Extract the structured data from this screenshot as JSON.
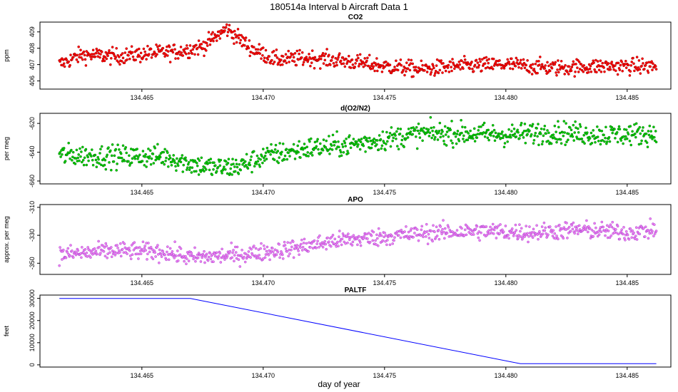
{
  "figure": {
    "title": "180514a   Interval b Aircraft Data 1",
    "xlabel": "day of year"
  },
  "chart_data": [
    {
      "type": "scatter",
      "title": "CO2",
      "ylabel": "ppm",
      "color": "#ff0000",
      "marker_outline": "#8b0000",
      "xlim": [
        134.4608,
        134.4868
      ],
      "ylim": [
        405.5,
        409.6
      ],
      "xticks": [
        "134.465",
        "134.470",
        "134.475",
        "134.480",
        "134.485"
      ],
      "yticks": [
        "406",
        "407",
        "408",
        "409"
      ],
      "x_range": [
        134.4616,
        134.4862
      ],
      "trend": [
        [
          134.4616,
          407.0
        ],
        [
          134.4625,
          407.6
        ],
        [
          134.464,
          407.5
        ],
        [
          134.4655,
          407.7
        ],
        [
          134.4665,
          407.8
        ],
        [
          134.4675,
          408.1
        ],
        [
          134.4685,
          409.2
        ],
        [
          134.4695,
          408.0
        ],
        [
          134.4705,
          407.3
        ],
        [
          134.472,
          407.4
        ],
        [
          134.4735,
          407.2
        ],
        [
          134.475,
          406.9
        ],
        [
          134.4765,
          406.7
        ],
        [
          134.478,
          406.9
        ],
        [
          134.48,
          407.0
        ],
        [
          134.482,
          406.8
        ],
        [
          134.484,
          406.9
        ],
        [
          134.4862,
          406.9
        ]
      ],
      "noise": 0.35
    },
    {
      "type": "scatter",
      "title": "d(O2/N2)",
      "ylabel": "per meg",
      "color": "#00cc00",
      "marker_outline": "#006400",
      "xlim": [
        134.4608,
        134.4868
      ],
      "ylim": [
        -662,
        -613
      ],
      "xticks": [
        "134.465",
        "134.470",
        "134.475",
        "134.480",
        "134.485"
      ],
      "yticks": [
        "-660",
        "-640",
        "-620"
      ],
      "x_range": [
        134.4616,
        134.4862
      ],
      "trend": [
        [
          134.4616,
          -642
        ],
        [
          134.464,
          -643
        ],
        [
          134.466,
          -643
        ],
        [
          134.467,
          -648
        ],
        [
          134.468,
          -651
        ],
        [
          134.469,
          -650
        ],
        [
          134.47,
          -643
        ],
        [
          134.472,
          -637
        ],
        [
          134.4735,
          -635
        ],
        [
          134.475,
          -631
        ],
        [
          134.4765,
          -627
        ],
        [
          134.478,
          -627
        ],
        [
          134.48,
          -628
        ],
        [
          134.482,
          -626
        ],
        [
          134.484,
          -628
        ],
        [
          134.4862,
          -627
        ]
      ],
      "noise": 5.5
    },
    {
      "type": "scatter",
      "title": "APO",
      "ylabel": "approx. per meg",
      "color": "#ee82ee",
      "marker_outline": "#9932cc",
      "xlim": [
        134.4608,
        134.4868
      ],
      "ylim": [
        -358,
        -308
      ],
      "xticks": [
        "134.465",
        "134.470",
        "134.475",
        "134.480",
        "134.485"
      ],
      "yticks": [
        "-350",
        "-330",
        "-310"
      ],
      "x_range": [
        134.4616,
        134.4862
      ],
      "trend": [
        [
          134.4616,
          -344
        ],
        [
          134.464,
          -341
        ],
        [
          134.466,
          -342
        ],
        [
          134.467,
          -346
        ],
        [
          134.469,
          -344
        ],
        [
          134.471,
          -340
        ],
        [
          134.473,
          -334
        ],
        [
          134.475,
          -331
        ],
        [
          134.477,
          -328
        ],
        [
          134.479,
          -327
        ],
        [
          134.481,
          -328
        ],
        [
          134.483,
          -326
        ],
        [
          134.485,
          -328
        ],
        [
          134.4862,
          -326
        ]
      ],
      "noise": 4.5
    },
    {
      "type": "line",
      "title": "PALTF",
      "ylabel": "feet",
      "color": "#0000ff",
      "xlim": [
        134.4608,
        134.4868
      ],
      "ylim": [
        -1000,
        31500
      ],
      "xticks": [
        "134.465",
        "134.470",
        "134.475",
        "134.480",
        "134.485"
      ],
      "yticks": [
        "0",
        "10000",
        "20000",
        "30000"
      ],
      "x": [
        134.4616,
        134.467,
        134.4806,
        134.4862
      ],
      "y": [
        30000,
        30000,
        500,
        500
      ]
    }
  ]
}
